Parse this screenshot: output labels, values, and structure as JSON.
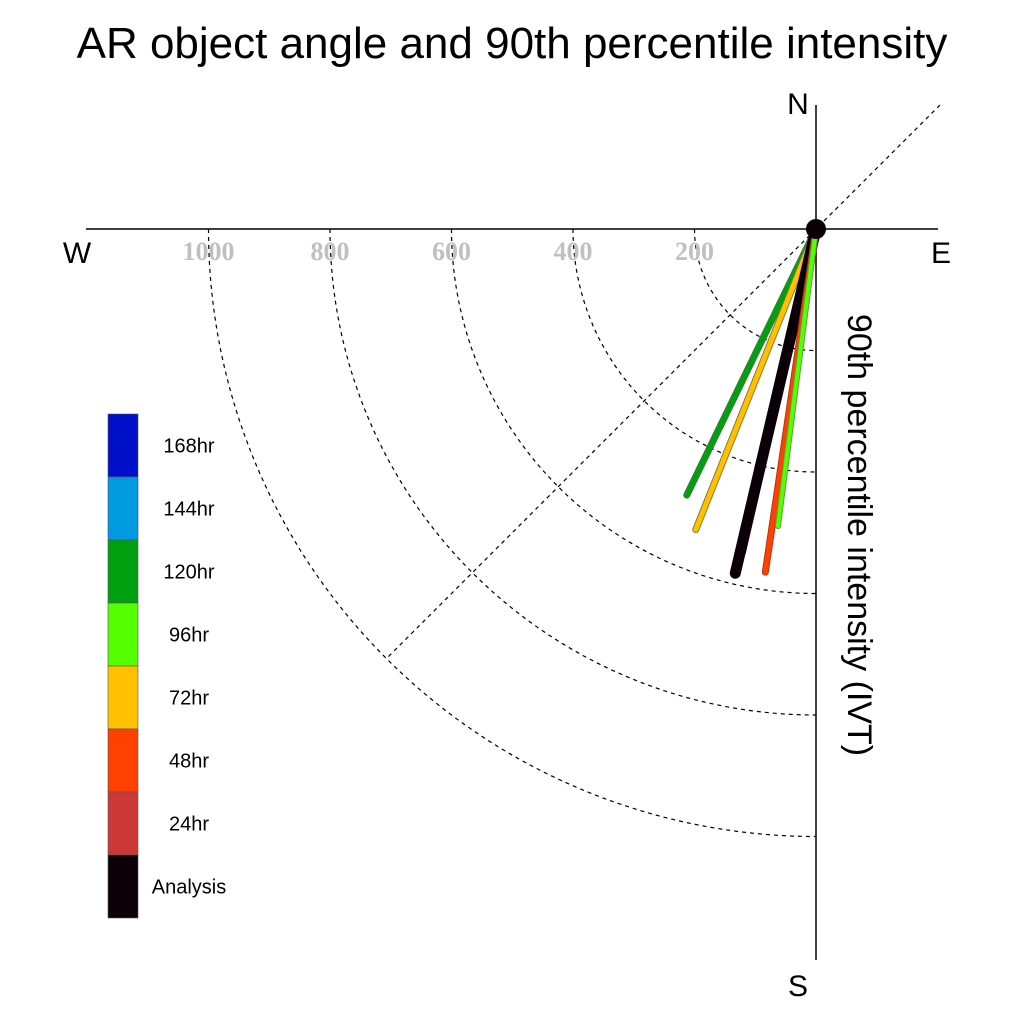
{
  "chart_data": {
    "type": "polar-vector",
    "title": "AR object angle and 90th percentile intensity",
    "ylabel": "90th percentile intensity (IVT)",
    "compass": {
      "north": "N",
      "south": "S",
      "east": "E",
      "west": "W"
    },
    "radial_ticks": [
      "200",
      "400",
      "600",
      "800",
      "1000"
    ],
    "radial_tick_values": [
      200,
      400,
      600,
      800,
      1000
    ],
    "rmax": 1000,
    "grid": true,
    "legend": {
      "placement": "left",
      "entries": [
        {
          "label": "168hr",
          "color": "#0010c8"
        },
        {
          "label": "144hr",
          "color": "#009ae0"
        },
        {
          "label": "120hr",
          "color": "#00a010"
        },
        {
          "label": "96hr",
          "color": "#55ff00"
        },
        {
          "label": "72hr",
          "color": "#ffc000"
        },
        {
          "label": "48hr",
          "color": "#ff4000"
        },
        {
          "label": "24hr",
          "color": "#cc3838"
        },
        {
          "label": "Analysis",
          "color": "#0c0008"
        }
      ]
    },
    "series": [
      {
        "name": "120hr",
        "angle_deg": 205.9,
        "ivt": 487,
        "color": "#00a010",
        "edge": "#3a7a3a",
        "width": 5
      },
      {
        "name": "72hr",
        "angle_deg": 201.8,
        "ivt": 533,
        "color": "#ffc000",
        "edge": "#8a7a30",
        "width": 5
      },
      {
        "name": "24hr",
        "angle_deg": 192.9,
        "ivt": 546,
        "color": "#cc3838",
        "edge": "#802020",
        "width": 6
      },
      {
        "name": "Analysis",
        "angle_deg": 193.2,
        "ivt": 582,
        "color": "#0c0008",
        "edge": "#0c0008",
        "width": 9
      },
      {
        "name": "48hr",
        "angle_deg": 188.4,
        "ivt": 571,
        "color": "#ff4000",
        "edge": "#b03a10",
        "width": 5
      },
      {
        "name": "96hr",
        "angle_deg": 187.3,
        "ivt": 493,
        "color": "#55ff00",
        "edge": "#5aa040",
        "width": 4
      }
    ],
    "center_marker": true
  }
}
